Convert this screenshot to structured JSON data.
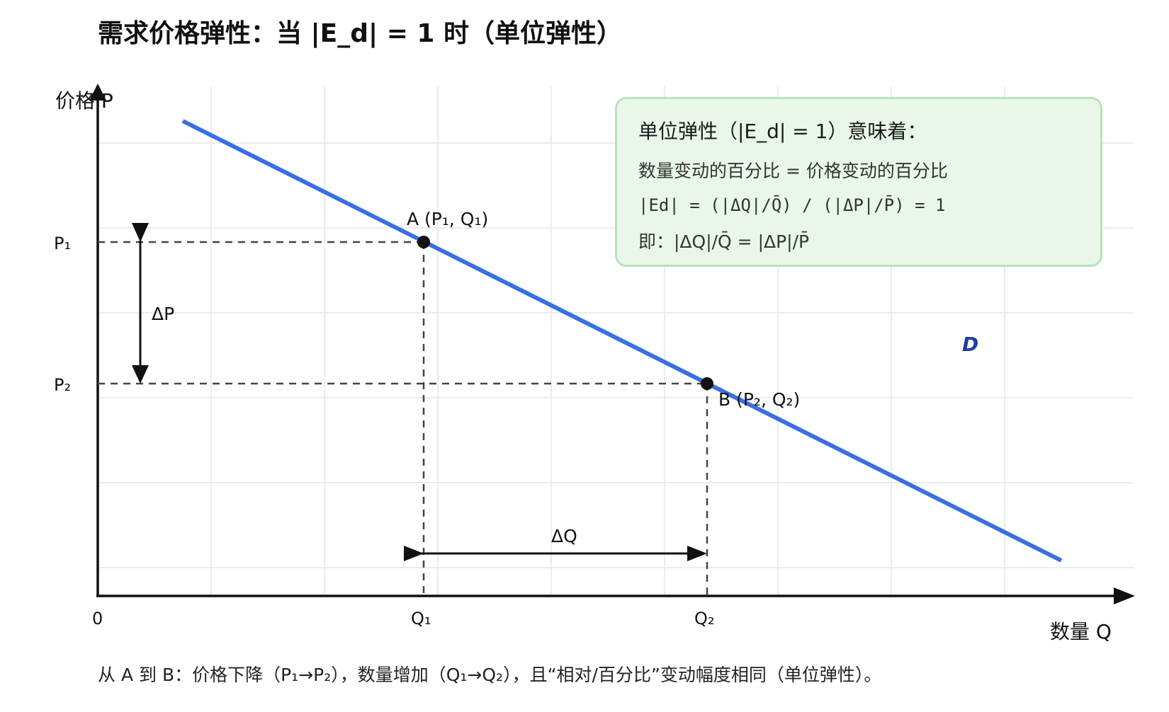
{
  "title": "需求价格弹性：当 |E_d| = 1 时（单位弹性）",
  "axes": {
    "y_label": "价格 P",
    "x_label": "数量 Q",
    "origin": "0"
  },
  "ticks": {
    "p1": "P₁",
    "p2": "P₂",
    "q1": "Q₁",
    "q2": "Q₂"
  },
  "points": {
    "a_label": "A (P₁, Q₁)",
    "b_label": "B (P₂, Q₂)"
  },
  "curve_label": "D",
  "delta_p": "ΔP",
  "delta_q": "ΔQ",
  "info": {
    "heading": "单位弹性（|E_d| = 1）意味着：",
    "line1": "数量变动的百分比 = 价格变动的百分比",
    "line2": "|Ed| = (|ΔQ|/Q̄) / (|ΔP|/P̄) = 1",
    "line3": "即：|ΔQ|/Q̄ = |ΔP|/P̄"
  },
  "caption": "从 A 到 B：价格下降（P₁→P₂），数量增加（Q₁→Q₂），且“相对/百分比”变动幅度相同（单位弹性）。",
  "colors": {
    "curve": "#3b6fe0",
    "curve_label": "#1f3f99",
    "info_bg": "#e9f7ea",
    "info_border": "#b6e3b9",
    "grid": "#e6e6e6",
    "dashed": "#444444"
  }
}
